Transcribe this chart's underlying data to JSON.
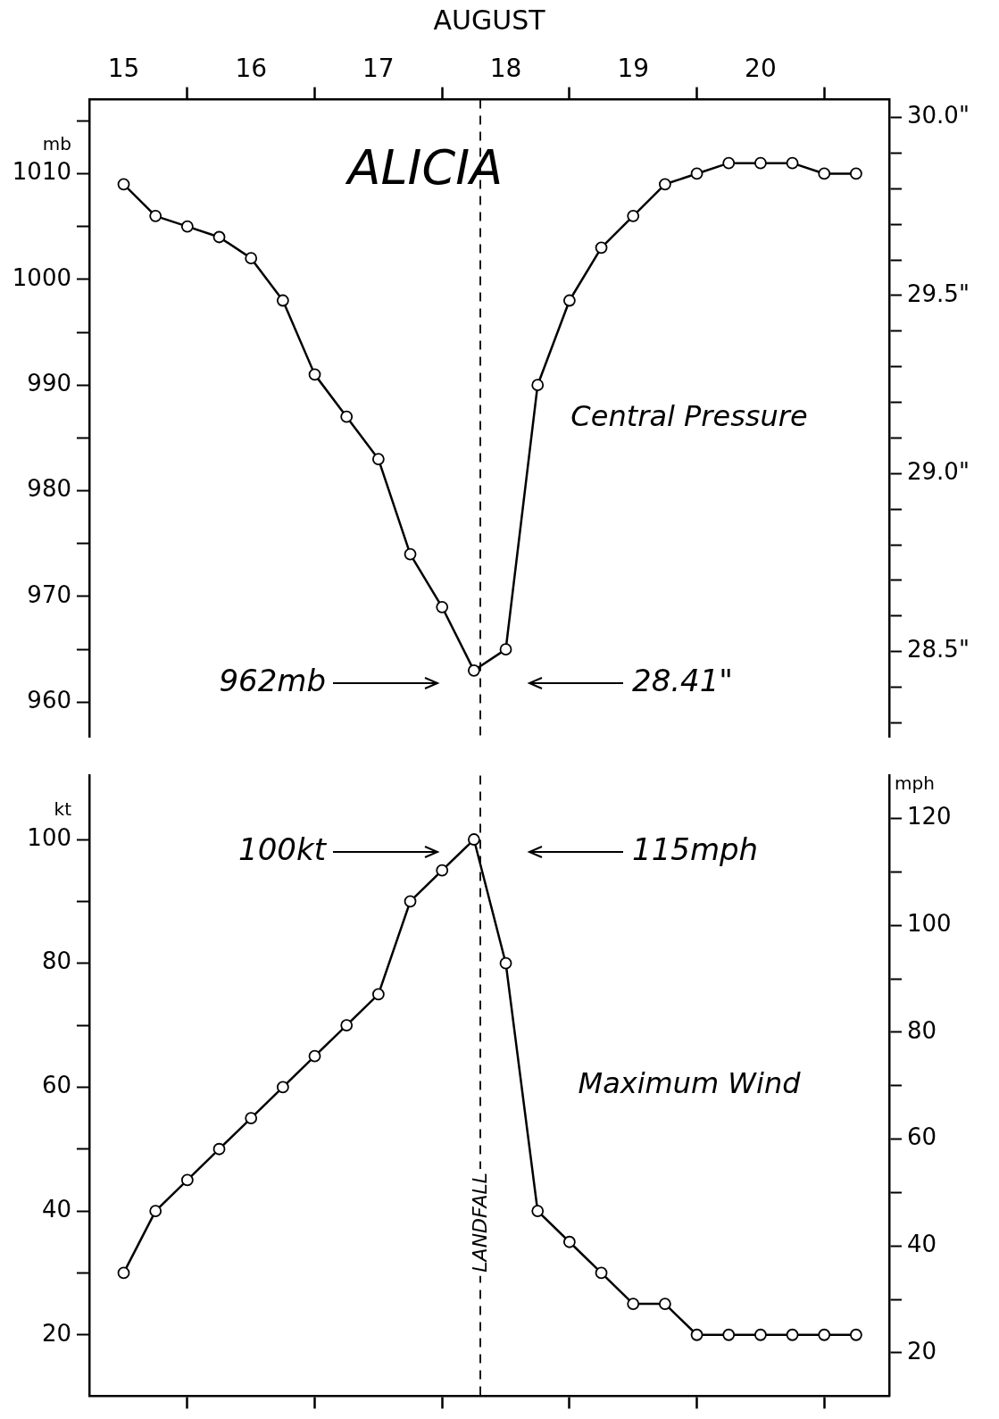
{
  "chart_data": [
    {
      "type": "line",
      "title": "ALICIA",
      "xlabel": "AUGUST",
      "xlim": [
        15.23,
        21.51
      ],
      "xticks": [
        {
          "value": 15.5,
          "label": "15"
        },
        {
          "value": 16,
          "label": null
        },
        {
          "value": 16.5,
          "label": "16"
        },
        {
          "value": 17,
          "label": null
        },
        {
          "value": 17.5,
          "label": "17"
        },
        {
          "value": 18,
          "label": null
        },
        {
          "value": 18.5,
          "label": "18"
        },
        {
          "value": 19,
          "label": null
        },
        {
          "value": 19.5,
          "label": "19"
        },
        {
          "value": 20,
          "label": null
        },
        {
          "value": 20.5,
          "label": "20"
        },
        {
          "value": 21,
          "label": null
        }
      ],
      "x": [
        15.5,
        15.75,
        16,
        16.25,
        16.5,
        16.75,
        17,
        17.25,
        17.5,
        17.75,
        18,
        18.25,
        18.5,
        18.75,
        19,
        19.25,
        19.5,
        19.75,
        20,
        20.25,
        20.5,
        20.75,
        21,
        21.25
      ],
      "ylabel": "mb",
      "ylim": [
        956.7,
        1017
      ],
      "yticks": [
        960,
        {
          "value": 965,
          "label": null
        },
        970,
        {
          "value": 975,
          "label": null
        },
        980,
        {
          "value": 985,
          "label": null
        },
        990,
        {
          "value": 995,
          "label": null
        },
        1000,
        {
          "value": 1005,
          "label": null
        },
        1010,
        {
          "value": 1015,
          "label": null
        }
      ],
      "y2lim": [
        28.26,
        30.05
      ],
      "y2ticks": [
        {
          "value": 28.3,
          "label": null
        },
        {
          "value": 28.4,
          "label": null
        },
        {
          "value": 28.5,
          "label": "28.5\""
        },
        {
          "value": 28.6,
          "label": null
        },
        {
          "value": 28.7,
          "label": null
        },
        {
          "value": 28.8,
          "label": null
        },
        {
          "value": 28.9,
          "label": null
        },
        {
          "value": 29,
          "label": "29.0\""
        },
        {
          "value": 29.1,
          "label": null
        },
        {
          "value": 29.2,
          "label": null
        },
        {
          "value": 29.3,
          "label": null
        },
        {
          "value": 29.4,
          "label": null
        },
        {
          "value": 29.5,
          "label": "29.5\""
        },
        {
          "value": 29.6,
          "label": null
        },
        {
          "value": 29.7,
          "label": null
        },
        {
          "value": 29.8,
          "label": null
        },
        {
          "value": 29.9,
          "label": null
        },
        {
          "value": 30,
          "label": "30.0\""
        }
      ],
      "series": [
        {
          "name": "Central Pressure",
          "color": "#000000",
          "values": [
            1009,
            1006,
            1005,
            1004,
            1002,
            998,
            991,
            987,
            983,
            974,
            969,
            963,
            965,
            990,
            998,
            1003,
            1006,
            1009,
            1010,
            1011,
            1011,
            1011,
            1010,
            1010
          ]
        }
      ],
      "marker": "circle",
      "line_style": "solid",
      "grid": false,
      "legend": false,
      "ref_lines": [
        {
          "axis": "x",
          "value": 18.3,
          "label": null,
          "line_style": "dashed"
        }
      ],
      "annotations": [
        "962mb",
        "28.41\""
      ]
    },
    {
      "type": "line",
      "tick_labels": "y",
      "xlim": [
        15.23,
        21.51
      ],
      "xticks": [
        {
          "value": 16,
          "label": null
        },
        {
          "value": 17,
          "label": null
        },
        {
          "value": 18,
          "label": null
        },
        {
          "value": 19,
          "label": null
        },
        {
          "value": 20,
          "label": null
        },
        {
          "value": 21,
          "label": null
        }
      ],
      "x": [
        15.5,
        15.75,
        16,
        16.25,
        16.5,
        16.75,
        17,
        17.25,
        17.5,
        17.75,
        18,
        18.25,
        18.5,
        18.75,
        19,
        19.25,
        19.5,
        19.75,
        20,
        20.25,
        20.5,
        20.75,
        21,
        21.25
      ],
      "ylabel": "kt",
      "ylim": [
        10.1,
        110.3
      ],
      "yticks": [
        20,
        {
          "value": 30,
          "label": null
        },
        40,
        {
          "value": 50,
          "label": null
        },
        60,
        {
          "value": 70,
          "label": null
        },
        80,
        {
          "value": 90,
          "label": null
        },
        100
      ],
      "y2label": "mph",
      "y2lim": [
        11.9,
        128
      ],
      "y2ticks": [
        20,
        {
          "value": 30,
          "label": null
        },
        40,
        {
          "value": 50,
          "label": null
        },
        60,
        {
          "value": 70,
          "label": null
        },
        80,
        {
          "value": 90,
          "label": null
        },
        100,
        {
          "value": 110,
          "label": null
        },
        120
      ],
      "series": [
        {
          "name": "Maximum Wind",
          "color": "#000000",
          "values": [
            30,
            40,
            45,
            50,
            55,
            60,
            65,
            70,
            75,
            90,
            95,
            100,
            80,
            40,
            35,
            30,
            25,
            25,
            20,
            20,
            20,
            20,
            20,
            20
          ]
        }
      ],
      "marker": "circle",
      "line_style": "solid",
      "grid": false,
      "legend": false,
      "ref_lines": [
        {
          "axis": "x",
          "value": 18.3,
          "label": "LANDFALL",
          "line_style": "dashed"
        }
      ],
      "annotations": [
        "100kt",
        "115mph"
      ]
    }
  ]
}
